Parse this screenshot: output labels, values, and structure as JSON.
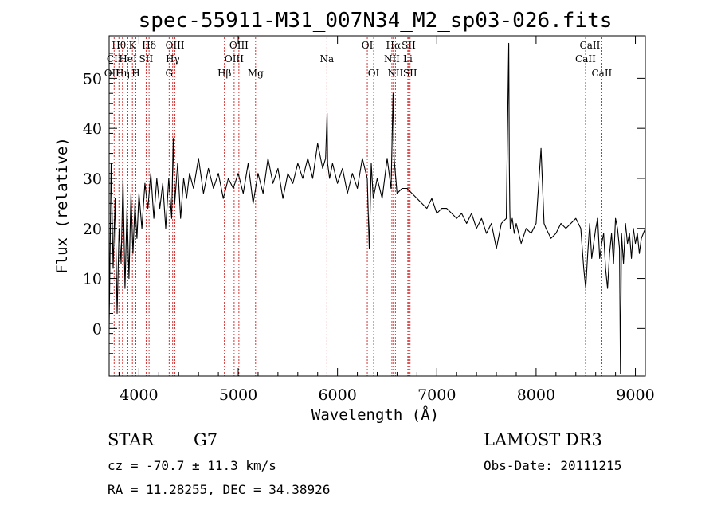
{
  "chart_data": {
    "type": "line",
    "title": "spec-55911-M31_007N34_M2_sp03-026.fits",
    "xlabel": "Wavelength (Å)",
    "ylabel": "Flux (relative)",
    "xlim": [
      3700,
      9100
    ],
    "ylim": [
      -9.5,
      58.5
    ],
    "xticks": [
      4000,
      5000,
      6000,
      7000,
      8000,
      9000
    ],
    "yticks": [
      0,
      10,
      20,
      30,
      40,
      50
    ],
    "line_color": "#000000",
    "marker_color": "#cc0000",
    "spectrum": {
      "x": [
        3700,
        3720,
        3740,
        3760,
        3780,
        3800,
        3820,
        3840,
        3860,
        3880,
        3900,
        3920,
        3940,
        3960,
        3980,
        4000,
        4030,
        4060,
        4090,
        4120,
        4150,
        4180,
        4210,
        4240,
        4270,
        4300,
        4330,
        4345,
        4360,
        4390,
        4420,
        4450,
        4480,
        4510,
        4550,
        4600,
        4650,
        4700,
        4750,
        4800,
        4850,
        4900,
        4950,
        5000,
        5050,
        5100,
        5150,
        5200,
        5250,
        5300,
        5350,
        5400,
        5450,
        5500,
        5550,
        5600,
        5650,
        5700,
        5750,
        5800,
        5850,
        5880,
        5895,
        5900,
        5920,
        5950,
        6000,
        6050,
        6100,
        6150,
        6200,
        6250,
        6300,
        6320,
        6340,
        6360,
        6400,
        6450,
        6500,
        6540,
        6560,
        6570,
        6600,
        6650,
        6700,
        6750,
        6800,
        6850,
        6900,
        6950,
        7000,
        7050,
        7100,
        7150,
        7200,
        7250,
        7300,
        7350,
        7400,
        7450,
        7500,
        7550,
        7600,
        7650,
        7700,
        7725,
        7730,
        7735,
        7740,
        7760,
        7780,
        7800,
        7850,
        7900,
        7950,
        8000,
        8050,
        8080,
        8100,
        8150,
        8200,
        8250,
        8300,
        8350,
        8400,
        8450,
        8480,
        8500,
        8520,
        8540,
        8560,
        8580,
        8600,
        8620,
        8640,
        8660,
        8680,
        8700,
        8720,
        8740,
        8760,
        8780,
        8800,
        8820,
        8840,
        8850,
        8860,
        8880,
        8900,
        8920,
        8940,
        8960,
        8980,
        9000,
        9020,
        9040,
        9060,
        9080,
        9100
      ],
      "y": [
        0,
        33,
        12,
        26,
        3,
        20,
        13,
        30,
        8,
        24,
        10,
        27,
        15,
        25,
        18,
        27,
        20,
        29,
        24,
        31,
        22,
        30,
        24,
        29,
        20,
        30,
        22,
        38,
        25,
        33,
        22,
        30,
        26,
        31,
        28,
        34,
        27,
        32,
        28,
        31,
        26,
        30,
        28,
        31,
        27,
        33,
        25,
        31,
        27,
        34,
        29,
        32,
        26,
        31,
        29,
        33,
        30,
        34,
        30,
        37,
        32,
        34,
        43,
        33,
        30,
        33,
        29,
        32,
        27,
        31,
        28,
        34,
        30,
        16,
        33,
        26,
        30,
        26,
        34,
        28,
        47,
        34,
        27,
        28,
        28,
        27,
        26,
        25,
        24,
        26,
        23,
        24,
        24,
        23,
        22,
        23,
        21,
        23,
        20,
        22,
        19,
        21,
        16,
        21,
        22,
        57,
        33,
        24,
        20,
        22,
        19,
        21,
        17,
        20,
        19,
        21,
        36,
        21,
        20,
        18,
        19,
        21,
        20,
        21,
        22,
        20,
        12,
        8,
        15,
        21,
        14,
        17,
        20,
        22,
        14,
        17,
        19,
        12,
        8,
        15,
        19,
        13,
        22,
        20,
        16,
        -9,
        19,
        13,
        21,
        17,
        19,
        14,
        20,
        17,
        19,
        15,
        18,
        19,
        20
      ]
    },
    "markers": [
      {
        "label": "Hθ",
        "x": 3798,
        "row": 0
      },
      {
        "label": "CII",
        "x": 3750,
        "row": 1
      },
      {
        "label": "OII",
        "x": 3727,
        "row": 2
      },
      {
        "label": "K",
        "x": 3934,
        "row": 0
      },
      {
        "label": "HeI",
        "x": 3889,
        "row": 1
      },
      {
        "label": "Hη",
        "x": 3835,
        "row": 2
      },
      {
        "label": "SII",
        "x": 4072,
        "row": 1
      },
      {
        "label": "H",
        "x": 3969,
        "row": 2
      },
      {
        "label": "Hδ",
        "x": 4102,
        "row": 0
      },
      {
        "label": "OIII",
        "x": 4363,
        "row": 0
      },
      {
        "label": "Hγ",
        "x": 4340,
        "row": 1
      },
      {
        "label": "G",
        "x": 4304,
        "row": 2
      },
      {
        "label": "OIII",
        "x": 5007,
        "row": 0
      },
      {
        "label": "OIII",
        "x": 4959,
        "row": 1
      },
      {
        "label": "Hβ",
        "x": 4861,
        "row": 2
      },
      {
        "label": "Mg",
        "x": 5175,
        "row": 2
      },
      {
        "label": "Na",
        "x": 5893,
        "row": 1
      },
      {
        "label": "OI",
        "x": 6300,
        "row": 0
      },
      {
        "label": "OI",
        "x": 6364,
        "row": 2
      },
      {
        "label": "Hα",
        "x": 6563,
        "row": 0
      },
      {
        "label": "SII",
        "x": 6717,
        "row": 0
      },
      {
        "label": "NII",
        "x": 6548,
        "row": 1
      },
      {
        "label": "Li",
        "x": 6708,
        "row": 1
      },
      {
        "label": "NII",
        "x": 6583,
        "row": 2
      },
      {
        "label": "SII",
        "x": 6731,
        "row": 2
      },
      {
        "label": "CaII",
        "x": 8542,
        "row": 0
      },
      {
        "label": "CaII",
        "x": 8498,
        "row": 1
      },
      {
        "label": "CaII",
        "x": 8662,
        "row": 2
      }
    ]
  },
  "info": {
    "class": "STAR",
    "subclass": "G7",
    "survey": "LAMOST DR3",
    "redshift": "cz = -70.7 ± 11.3 km/s",
    "obs_date": "Obs-Date: 20111215",
    "coords": "RA =  11.28255, DEC =  34.38926"
  }
}
